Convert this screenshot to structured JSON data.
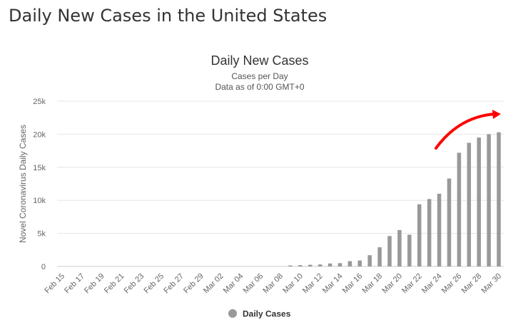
{
  "page": {
    "heading": "Daily New Cases in the United States"
  },
  "chart_data": {
    "type": "bar",
    "title": "Daily New Cases",
    "subtitle": "Cases per Day",
    "subtitle2": "Data as of 0:00 GMT+0",
    "xlabel": "",
    "ylabel": "Novel Coronavirus Daily Cases",
    "ylim": [
      0,
      25000
    ],
    "yticks": [
      0,
      5000,
      10000,
      15000,
      20000,
      25000
    ],
    "ytick_labels": [
      "0",
      "5k",
      "10k",
      "15k",
      "20k",
      "25k"
    ],
    "grid": true,
    "legend": "bottom-center",
    "bar_color": "#999999",
    "annotation_color": "#ff0000",
    "categories": [
      "Feb 15",
      "Feb 16",
      "Feb 17",
      "Feb 18",
      "Feb 19",
      "Feb 20",
      "Feb 21",
      "Feb 22",
      "Feb 23",
      "Feb 24",
      "Feb 25",
      "Feb 26",
      "Feb 27",
      "Feb 28",
      "Feb 29",
      "Mar 01",
      "Mar 02",
      "Mar 03",
      "Mar 04",
      "Mar 05",
      "Mar 06",
      "Mar 07",
      "Mar 08",
      "Mar 09",
      "Mar 10",
      "Mar 11",
      "Mar 12",
      "Mar 13",
      "Mar 14",
      "Mar 15",
      "Mar 16",
      "Mar 17",
      "Mar 18",
      "Mar 19",
      "Mar 20",
      "Mar 21",
      "Mar 22",
      "Mar 23",
      "Mar 24",
      "Mar 25",
      "Mar 26",
      "Mar 27",
      "Mar 28",
      "Mar 29",
      "Mar 30"
    ],
    "tick_labels_shown": [
      "Feb 15",
      "Feb 17",
      "Feb 19",
      "Feb 21",
      "Feb 23",
      "Feb 25",
      "Feb 27",
      "Feb 29",
      "Mar 02",
      "Mar 04",
      "Mar 06",
      "Mar 08",
      "Mar 10",
      "Mar 12",
      "Mar 14",
      "Mar 16",
      "Mar 18",
      "Mar 20",
      "Mar 22",
      "Mar 24",
      "Mar 26",
      "Mar 28",
      "Mar 30"
    ],
    "series": [
      {
        "name": "Daily Cases",
        "values": [
          0,
          0,
          0,
          0,
          0,
          0,
          0,
          0,
          0,
          0,
          0,
          0,
          0,
          0,
          0,
          0,
          0,
          0,
          0,
          0,
          0,
          0,
          0,
          150,
          200,
          250,
          300,
          450,
          500,
          800,
          900,
          1700,
          2900,
          4600,
          5500,
          4800,
          9400,
          10200,
          11000,
          13300,
          17200,
          18700,
          19500,
          20000,
          20300
        ]
      }
    ]
  }
}
